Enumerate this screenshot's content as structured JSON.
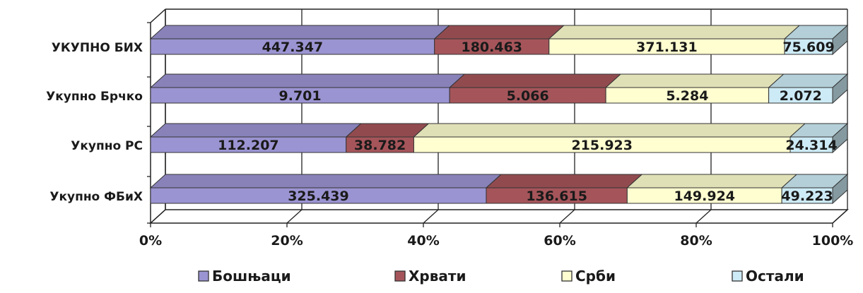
{
  "chart_data": {
    "type": "bar",
    "orientation": "horizontal",
    "stacked": "100%",
    "style": "3d",
    "categories": [
      "УКУПНО БИХ",
      "Укупно Брчко",
      "Укупно РС",
      "Укупно ФБиХ"
    ],
    "series": [
      {
        "name": "Бошњаци",
        "color": "#9b94d2",
        "values": [
          447347,
          9701,
          112207,
          325439
        ],
        "labels": [
          "447.347",
          "9.701",
          "112.207",
          "325.439"
        ]
      },
      {
        "name": "Хрвати",
        "color": "#a5555a",
        "values": [
          180463,
          5066,
          38782,
          136615
        ],
        "labels": [
          "180.463",
          "5.066",
          "38.782",
          "136.615"
        ]
      },
      {
        "name": "Срби",
        "color": "#fffed0",
        "values": [
          371131,
          5284,
          215923,
          149924
        ],
        "labels": [
          "371.131",
          "5.284",
          "215.923",
          "149.924"
        ]
      },
      {
        "name": "Остали",
        "color": "#cdebf6",
        "values": [
          75609,
          2072,
          24314,
          49223
        ],
        "labels": [
          "75.609",
          "2.072",
          "24.314",
          "49.223"
        ]
      }
    ],
    "xticks": [
      "0%",
      "20%",
      "40%",
      "60%",
      "80%",
      "100%"
    ],
    "xlim": [
      0,
      100
    ],
    "grid": true,
    "legend": "bottom"
  }
}
